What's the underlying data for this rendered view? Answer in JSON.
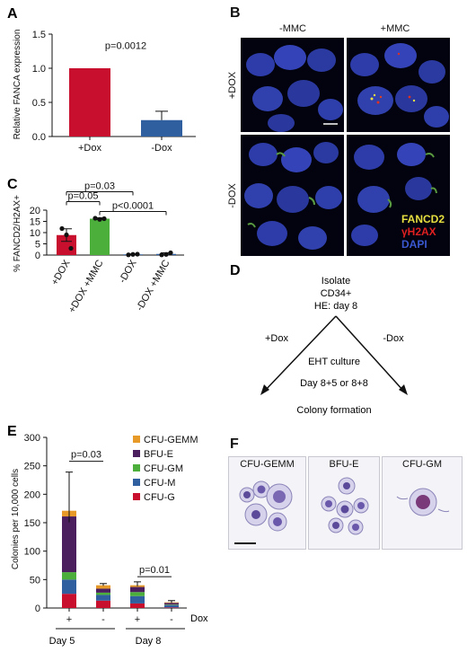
{
  "panels": {
    "A": {
      "letter": "A",
      "chart_data": {
        "type": "bar",
        "categories": [
          "+Dox",
          "-Dox"
        ],
        "values": [
          1.0,
          0.24
        ],
        "errors": [
          0,
          0.13
        ],
        "colors": [
          "#c8102e",
          "#2f5f9e"
        ],
        "ylabel": "Relative FANCA expression",
        "ylim": [
          0,
          1.5
        ],
        "yticks": [
          "0.0",
          "0.5",
          "1.0",
          "1.5"
        ],
        "annotation": "p=0.0012"
      }
    },
    "B": {
      "letter": "B",
      "col_labels": [
        "-MMC",
        "+MMC"
      ],
      "row_labels": [
        "+DOX",
        "-DOX"
      ],
      "legend": [
        {
          "text": "FANCD2",
          "color": "#e8e040"
        },
        {
          "text": "γH2AX",
          "color": "#e02020"
        },
        {
          "text": "DAPI",
          "color": "#3a58d0"
        }
      ]
    },
    "C": {
      "letter": "C",
      "chart_data": {
        "type": "bar",
        "categories": [
          "+DOX",
          "+DOX +MMC",
          "-DOX",
          "-DOX +MMC"
        ],
        "values": [
          8.9,
          16.2,
          0.3,
          0.5
        ],
        "errors": [
          2.8,
          0.4,
          0.2,
          0.5
        ],
        "points": [
          [
            11.8,
            9.0,
            3.0
          ],
          [
            16.4,
            15.9,
            16.2
          ],
          [
            0.1,
            0.3,
            0.4
          ],
          [
            0.1,
            0.3,
            1.0
          ]
        ],
        "colors": [
          "#c8102e",
          "#4caf3c",
          "#2f5f9e",
          "#2f5f9e"
        ],
        "ylabel": "% FANCD2/H2AX+",
        "ylim": [
          0,
          20
        ],
        "yticks": [
          "0",
          "5",
          "10",
          "15",
          "20"
        ],
        "comparisons": [
          {
            "from": 0,
            "to": 2,
            "level": 3,
            "label": "p=0.03"
          },
          {
            "from": 0,
            "to": 1,
            "level": 2,
            "label": "p=0.05"
          },
          {
            "from": 1,
            "to": 3,
            "level": 1,
            "label": "p<0.0001"
          }
        ]
      }
    },
    "D": {
      "letter": "D",
      "top_text": [
        "Isolate",
        "CD34+",
        "HE: day 8"
      ],
      "left_label": "+Dox",
      "right_label": "-Dox",
      "mid_text_1": "EHT culture",
      "mid_text_2": "Day 8+5 or 8+8",
      "bottom_text": "Colony formation"
    },
    "E": {
      "letter": "E",
      "chart_data": {
        "type": "bar",
        "stacked": true,
        "categories": [
          "+",
          "-",
          "+",
          "-"
        ],
        "groups": [
          "Day 5",
          "Day 8"
        ],
        "group_suffix": "Dox",
        "series": [
          {
            "name": "CFU-G",
            "color": "#c8102e",
            "values": [
              25,
              13,
              8,
              1
            ]
          },
          {
            "name": "CFU-M",
            "color": "#2f5f9e",
            "values": [
              25,
              10,
              13,
              4
            ]
          },
          {
            "name": "CFU-GM",
            "color": "#4caf3c",
            "values": [
              13,
              4,
              7,
              1
            ]
          },
          {
            "name": "BFU-E",
            "color": "#4b1f5e",
            "values": [
              98,
              7,
              9,
              3
            ]
          },
          {
            "name": "CFU-GEMM",
            "color": "#e89a28",
            "values": [
              10,
              6,
              3,
              1
            ]
          }
        ],
        "legend_order": [
          "CFU-GEMM",
          "BFU-E",
          "CFU-GM",
          "CFU-M",
          "CFU-G"
        ],
        "total_errors": [
          68,
          3,
          6,
          3
        ],
        "ylabel": "Colonies per 10,000 cells",
        "ylim": [
          0,
          300
        ],
        "yticks": [
          "0",
          "50",
          "100",
          "150",
          "200",
          "250",
          "300"
        ],
        "comparisons": [
          {
            "from": 0,
            "to": 1,
            "label": "p=0.03",
            "y": 258
          },
          {
            "from": 2,
            "to": 3,
            "label": "p=0.01",
            "y": 55
          }
        ]
      }
    },
    "F": {
      "letter": "F",
      "images": [
        {
          "label": "CFU-GEMM"
        },
        {
          "label": "BFU-E"
        },
        {
          "label": "CFU-GM"
        }
      ]
    }
  }
}
